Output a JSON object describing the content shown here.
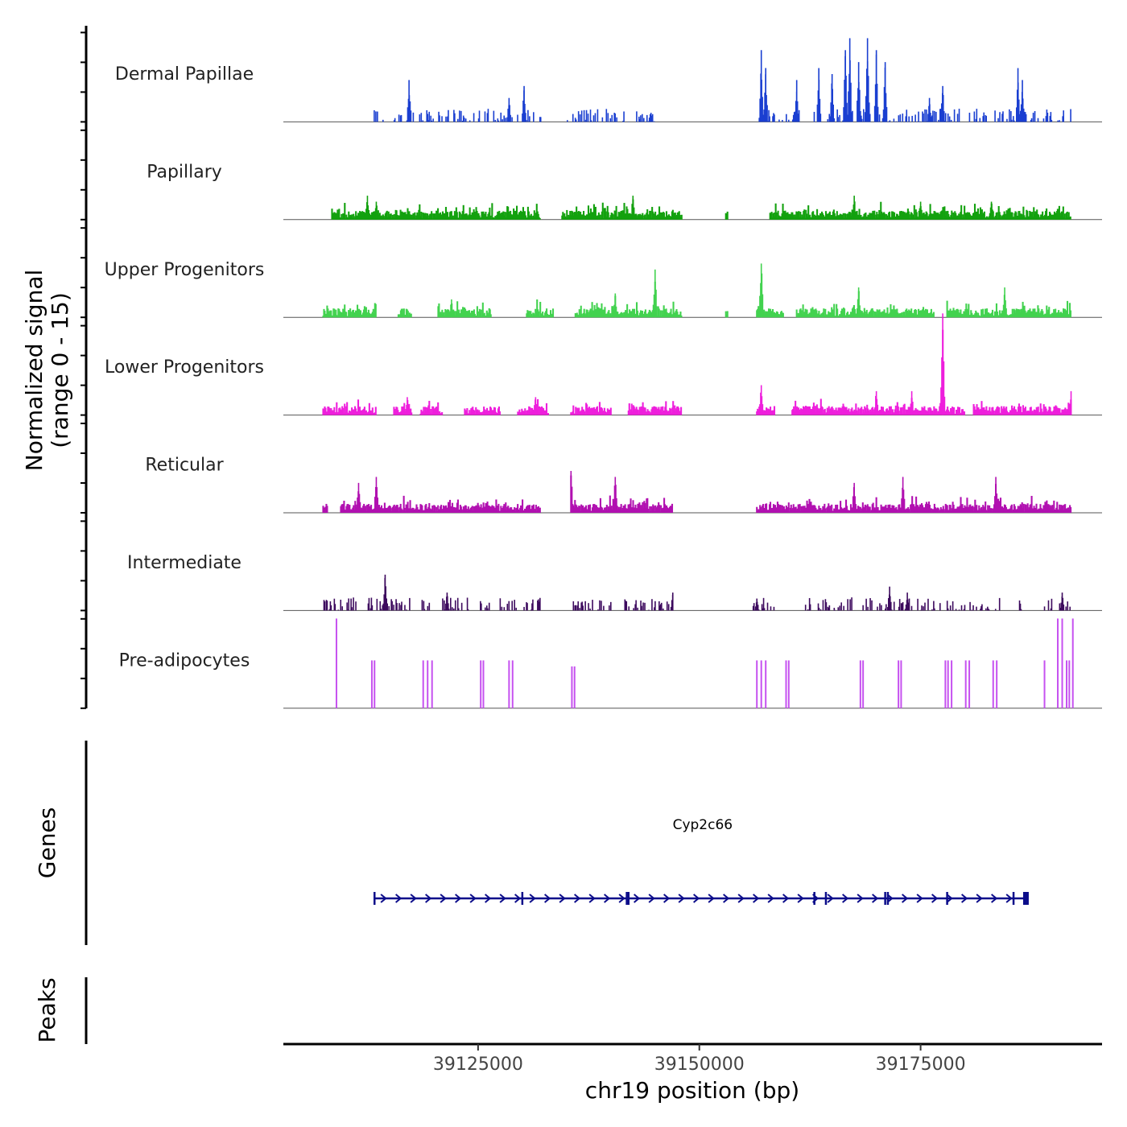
{
  "chart_data": {
    "type": "area",
    "title": "",
    "ylabel": "Normalized signal (range 0 - 15)",
    "ylabel_lines": [
      "Normalized signal",
      "(range 0 - 15)"
    ],
    "xlabel": "chr19 position (bp)",
    "xlim": [
      39103000,
      39195500
    ],
    "ylim": [
      0,
      15
    ],
    "x_ticks": [
      39125000,
      39150000,
      39175000
    ],
    "x_tick_labels": [
      "39125000",
      "39150000",
      "39175000"
    ],
    "tracks": [
      {
        "name": "Dermal Papillae",
        "color": "#1a3fd1",
        "style": "spiky",
        "regions": [
          [
            39113000,
            39132500
          ],
          [
            39135000,
            39145000
          ],
          [
            39156500,
            39192000
          ]
        ],
        "peaks": [
          [
            39117200,
            7
          ],
          [
            39128500,
            4
          ],
          [
            39130200,
            6
          ],
          [
            39157000,
            12
          ],
          [
            39157500,
            9
          ],
          [
            39161000,
            7
          ],
          [
            39163500,
            9
          ],
          [
            39165000,
            8
          ],
          [
            39166500,
            12
          ],
          [
            39167000,
            14
          ],
          [
            39168000,
            10
          ],
          [
            39169000,
            14
          ],
          [
            39170000,
            12
          ],
          [
            39171000,
            10
          ],
          [
            39176000,
            4
          ],
          [
            39177500,
            6
          ],
          [
            39186000,
            9
          ],
          [
            39186500,
            7
          ]
        ]
      },
      {
        "name": "Papillary",
        "color": "#13a10e",
        "style": "filled",
        "regions": [
          [
            39108500,
            39132000
          ],
          [
            39134500,
            39148000
          ],
          [
            39153000,
            39153200
          ],
          [
            39158000,
            39192000
          ]
        ],
        "peaks": [
          [
            39112500,
            4
          ],
          [
            39113500,
            3
          ],
          [
            39142500,
            4
          ],
          [
            39167500,
            4
          ],
          [
            39175000,
            3
          ],
          [
            39183000,
            3
          ]
        ]
      },
      {
        "name": "Upper Progenitors",
        "color": "#42d24f",
        "style": "filled",
        "regions": [
          [
            39107500,
            39113500
          ],
          [
            39116000,
            39117500
          ],
          [
            39120500,
            39126500
          ],
          [
            39130500,
            39133500
          ],
          [
            39136000,
            39148000
          ],
          [
            39153000,
            39153200
          ],
          [
            39156500,
            39159500
          ],
          [
            39161000,
            39176500
          ],
          [
            39178000,
            39192000
          ]
        ],
        "peaks": [
          [
            39122000,
            3
          ],
          [
            39140500,
            4
          ],
          [
            39145000,
            8
          ],
          [
            39157000,
            9
          ],
          [
            39168000,
            5
          ],
          [
            39184500,
            5
          ]
        ]
      },
      {
        "name": "Lower Progenitors",
        "color": "#ee1fdc",
        "style": "filled",
        "regions": [
          [
            39107500,
            39113500
          ],
          [
            39115500,
            39117500
          ],
          [
            39118500,
            39121000
          ],
          [
            39123500,
            39127500
          ],
          [
            39129500,
            39133000
          ],
          [
            39135500,
            39140000
          ],
          [
            39142000,
            39148000
          ],
          [
            39156500,
            39158500
          ],
          [
            39160500,
            39180000
          ],
          [
            39181000,
            39192000
          ]
        ],
        "peaks": [
          [
            39117000,
            3
          ],
          [
            39131500,
            3
          ],
          [
            39157000,
            5
          ],
          [
            39170000,
            4
          ],
          [
            39174000,
            4
          ],
          [
            39177500,
            17
          ],
          [
            39192000,
            4
          ]
        ]
      },
      {
        "name": "Reticular",
        "color": "#b110b0",
        "style": "filled",
        "regions": [
          [
            39107500,
            39108000
          ],
          [
            39109500,
            39132000
          ],
          [
            39135500,
            39147000
          ],
          [
            39156500,
            39192000
          ]
        ],
        "peaks": [
          [
            39111500,
            5
          ],
          [
            39113500,
            6
          ],
          [
            39135500,
            7
          ],
          [
            39140500,
            6
          ],
          [
            39167500,
            5
          ],
          [
            39173000,
            6
          ],
          [
            39183500,
            6
          ]
        ]
      },
      {
        "name": "Intermediate",
        "color": "#3d0a5e",
        "style": "spiky",
        "regions": [
          [
            39107500,
            39111500
          ],
          [
            39112500,
            39117500
          ],
          [
            39118500,
            39119500
          ],
          [
            39121000,
            39124000
          ],
          [
            39125000,
            39126500
          ],
          [
            39127500,
            39132000
          ],
          [
            39135500,
            39140000
          ],
          [
            39141500,
            39147000
          ],
          [
            39156000,
            39158500
          ],
          [
            39162000,
            39167500
          ],
          [
            39168500,
            39174000
          ],
          [
            39174500,
            39180000
          ],
          [
            39180500,
            39184000
          ],
          [
            39186000,
            39187500
          ],
          [
            39189000,
            39192000
          ]
        ],
        "peaks": [
          [
            39112000,
            3
          ],
          [
            39114500,
            6
          ],
          [
            39121500,
            3
          ],
          [
            39147000,
            3
          ],
          [
            39156500,
            2
          ],
          [
            39168000,
            4
          ],
          [
            39171500,
            4
          ],
          [
            39173500,
            3
          ],
          [
            39191000,
            3
          ]
        ]
      },
      {
        "name": "Pre-adipocytes",
        "color": "#c651f0",
        "style": "spikes",
        "bars": [
          [
            39109000,
            15
          ],
          [
            39113000,
            8
          ],
          [
            39113300,
            8
          ],
          [
            39118800,
            8
          ],
          [
            39119300,
            8
          ],
          [
            39119800,
            8
          ],
          [
            39125300,
            8
          ],
          [
            39125600,
            8
          ],
          [
            39128500,
            8
          ],
          [
            39128900,
            8
          ],
          [
            39135600,
            7
          ],
          [
            39135900,
            7
          ],
          [
            39156500,
            8
          ],
          [
            39157000,
            8
          ],
          [
            39157500,
            8
          ],
          [
            39159800,
            8
          ],
          [
            39160100,
            8
          ],
          [
            39168200,
            8
          ],
          [
            39168500,
            8
          ],
          [
            39172500,
            8
          ],
          [
            39172800,
            8
          ],
          [
            39177800,
            8
          ],
          [
            39178100,
            8
          ],
          [
            39178500,
            8
          ],
          [
            39180100,
            8
          ],
          [
            39180500,
            8
          ],
          [
            39183200,
            8
          ],
          [
            39183600,
            8
          ],
          [
            39189000,
            8
          ],
          [
            39190500,
            15
          ],
          [
            39191000,
            15
          ],
          [
            39191500,
            8
          ],
          [
            39191800,
            8
          ],
          [
            39192200,
            15
          ]
        ]
      }
    ],
    "gene_track": {
      "title": "Genes",
      "genes": [
        {
          "name": "Cyp2c66",
          "start": 39113200,
          "end": 39187000,
          "strand": "+",
          "exons": [
            39113300,
            39130000,
            39141800,
            39142000,
            39163000,
            39164300,
            39171000,
            39171300,
            39178000,
            39185500,
            39186900
          ]
        }
      ]
    },
    "peak_track": {
      "title": "Peaks",
      "peaks": []
    }
  }
}
